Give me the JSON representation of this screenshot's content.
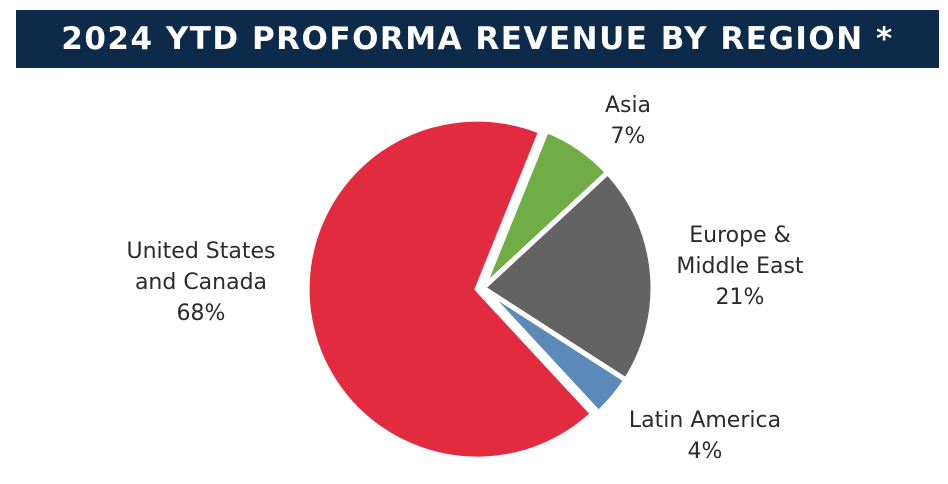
{
  "chart_data": {
    "type": "pie",
    "title": "2024 YTD PROFORMA REVENUE BY REGION *",
    "slices": [
      {
        "label_lines": [
          "Asia"
        ],
        "value": 7,
        "value_label": "7%",
        "color": "#70ad47"
      },
      {
        "label_lines": [
          "Europe &",
          "Middle East"
        ],
        "value": 21,
        "value_label": "21%",
        "color": "#636363"
      },
      {
        "label_lines": [
          "Latin America"
        ],
        "value": 4,
        "value_label": "4%",
        "color": "#5b8ab8"
      },
      {
        "label_lines": [
          "United States",
          "and Canada"
        ],
        "value": 68,
        "value_label": "68%",
        "color": "#e32b3f"
      }
    ]
  },
  "colors": {
    "title_bar": "#0d2a4b",
    "title_text": "#ffffff",
    "label_text": "#2b2b2b"
  }
}
